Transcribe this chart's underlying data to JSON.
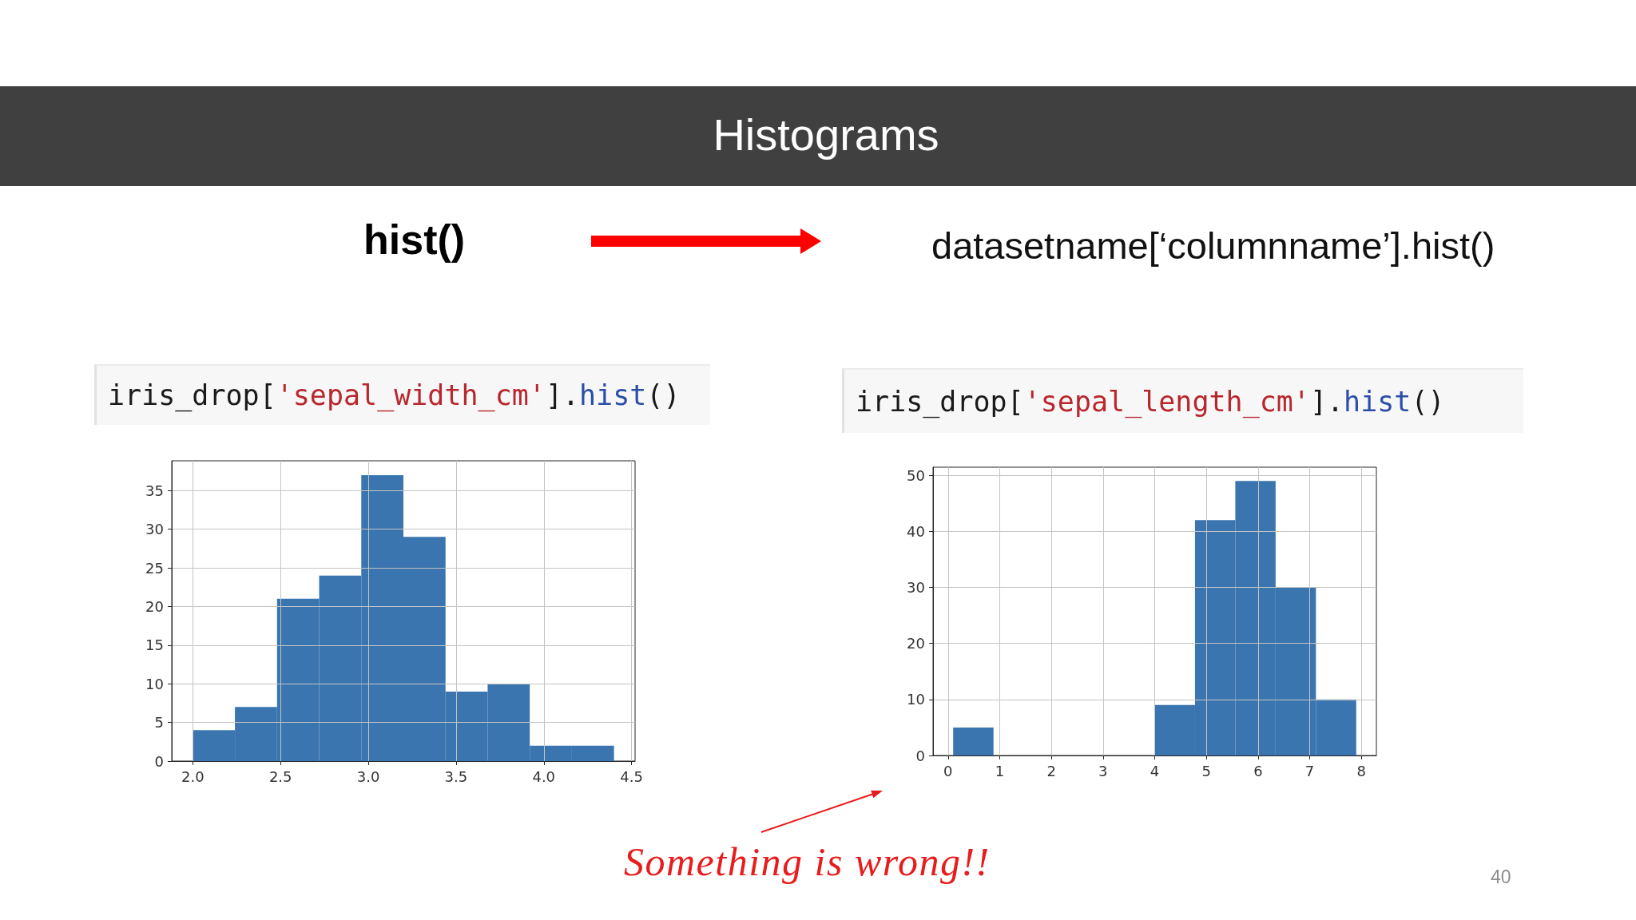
{
  "chart_data": [
    {
      "type": "other",
      "title": "Histograms",
      "annotations": [
        "hist()",
        "datasetname[‘columnname’].hist()"
      ]
    },
    {
      "type": "histogram",
      "title": "iris_drop['sepal_width_cm'].hist()",
      "bins": [
        2.0,
        2.24,
        2.48,
        2.72,
        2.96,
        3.2,
        3.44,
        3.68,
        3.92,
        4.16,
        4.4
      ],
      "values": [
        4,
        7,
        21,
        24,
        37,
        29,
        9,
        10,
        2,
        2
      ],
      "color": "#3a75af",
      "xlim": [
        1.88,
        4.52
      ],
      "ylim": [
        0,
        38.85
      ],
      "xticks": [
        {
          "value": 2,
          "label": "2.0"
        },
        2.5,
        {
          "value": 3,
          "label": "3.0"
        },
        3.5,
        {
          "value": 4,
          "label": "4.0"
        },
        4.5
      ],
      "yticks": [
        0,
        5,
        10,
        15,
        20,
        25,
        30,
        35
      ],
      "grid": true
    },
    {
      "type": "histogram",
      "title": "iris_drop['sepal_length_cm'].hist()",
      "bins": [
        0.1,
        0.88,
        1.66,
        2.44,
        3.22,
        4.0,
        4.78,
        5.56,
        6.34,
        7.12,
        7.9
      ],
      "values": [
        5,
        0,
        0,
        0,
        0,
        9,
        42,
        49,
        30,
        10
      ],
      "color": "#3a75af",
      "xlim": [
        -0.29,
        8.29
      ],
      "ylim": [
        0,
        51.45
      ],
      "xticks": [
        0,
        1,
        2,
        3,
        4,
        5,
        6,
        7,
        8
      ],
      "yticks": [
        0,
        10,
        20,
        30,
        40,
        50
      ],
      "grid": true,
      "annotations": [
        "Something is wrong!!",
        "40"
      ]
    }
  ]
}
